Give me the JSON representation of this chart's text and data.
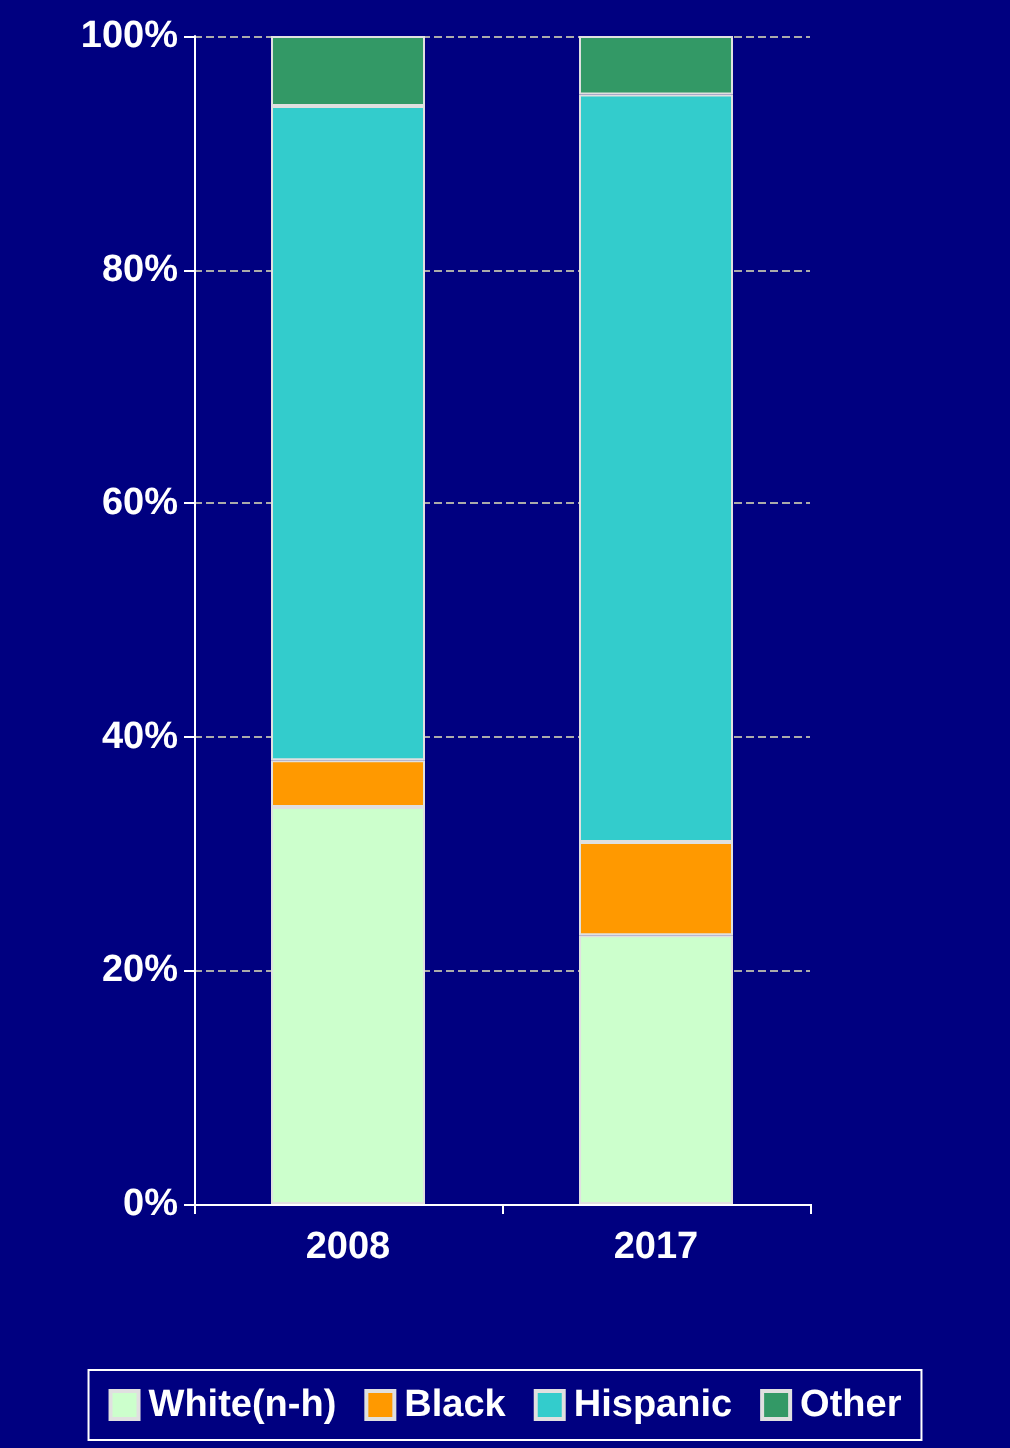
{
  "chart_data": {
    "type": "bar",
    "stacked": true,
    "categories": [
      "2008",
      "2017"
    ],
    "series": [
      {
        "name": "White(n-h)",
        "color": "#ccffcc",
        "values": [
          34,
          23
        ]
      },
      {
        "name": "Black",
        "color": "#ff9900",
        "values": [
          4,
          8
        ]
      },
      {
        "name": "Hispanic",
        "color": "#33cccc",
        "values": [
          56,
          64
        ]
      },
      {
        "name": "Other",
        "color": "#339966",
        "values": [
          6,
          5
        ]
      }
    ],
    "ylim": [
      0,
      100
    ],
    "yticks": [
      {
        "value": 0,
        "label": "0%"
      },
      {
        "value": 20,
        "label": "20%"
      },
      {
        "value": 40,
        "label": "40%"
      },
      {
        "value": 60,
        "label": "60%"
      },
      {
        "value": 80,
        "label": "80%"
      },
      {
        "value": 100,
        "label": "100%"
      }
    ],
    "grid": "y",
    "legend": "bottom"
  }
}
